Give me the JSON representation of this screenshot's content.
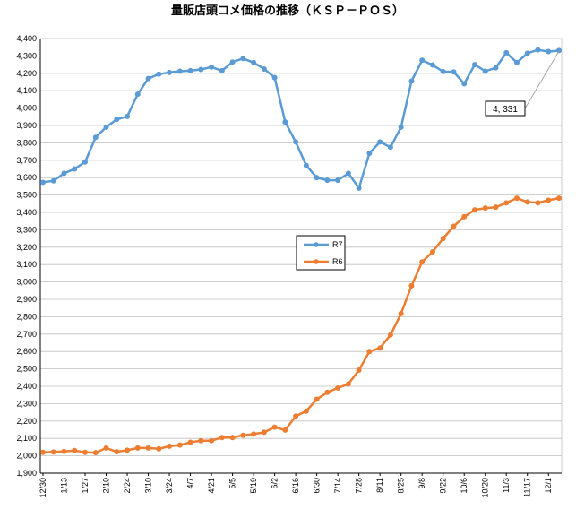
{
  "chart_data": {
    "type": "line",
    "title": "量販店頭コメ価格の推移（ＫＳＰ－ＰＯＳ）",
    "xlabel": "",
    "ylabel": "",
    "ylim": [
      1900,
      4400
    ],
    "yticks": [
      1900,
      2000,
      2100,
      2200,
      2300,
      2400,
      2500,
      2600,
      2700,
      2800,
      2900,
      3000,
      3100,
      3200,
      3300,
      3400,
      3500,
      3600,
      3700,
      3800,
      3900,
      4000,
      4100,
      4200,
      4300,
      4400
    ],
    "ytick_labels": [
      "1,900",
      "2,000",
      "2,100",
      "2,200",
      "2,300",
      "2,400",
      "2,500",
      "2,600",
      "2,700",
      "2,800",
      "2,900",
      "3,000",
      "3,100",
      "3,200",
      "3,300",
      "3,400",
      "3,500",
      "3,600",
      "3,700",
      "3,800",
      "3,900",
      "4,000",
      "4,100",
      "4,200",
      "4,300",
      "4,400"
    ],
    "xtick_labels": [
      "12/30",
      "1/13",
      "1/27",
      "2/10",
      "2/24",
      "3/10",
      "3/24",
      "4/7",
      "4/21",
      "5/5",
      "5/19",
      "6/2",
      "6/16",
      "6/30",
      "7/14",
      "7/28",
      "8/11",
      "8/25",
      "9/8",
      "9/22",
      "10/6",
      "10/20",
      "11/3",
      "11/17",
      "12/1"
    ],
    "grid": true,
    "legend": "center-right",
    "series": [
      {
        "name": "R7",
        "color": "#5b9bd5",
        "values": [
          3573,
          3582,
          3625,
          3650,
          3690,
          3832,
          3890,
          3935,
          3952,
          4080,
          4170,
          4195,
          4205,
          4212,
          4215,
          4222,
          4236,
          4215,
          4265,
          4285,
          4262,
          4225,
          4175,
          3920,
          3805,
          3670,
          3600,
          3585,
          3585,
          3625,
          3540,
          3740,
          3805,
          3775,
          3890,
          4155,
          4275,
          4248,
          4210,
          4208,
          4140,
          4250,
          4212,
          4232,
          4318,
          4262,
          4315,
          4335,
          4325,
          4331
        ]
      },
      {
        "name": "R6",
        "color": "#ed7d31",
        "values": [
          2020,
          2022,
          2025,
          2030,
          2020,
          2018,
          2045,
          2023,
          2032,
          2045,
          2045,
          2040,
          2055,
          2062,
          2078,
          2087,
          2087,
          2105,
          2105,
          2118,
          2125,
          2135,
          2165,
          2148,
          2228,
          2257,
          2325,
          2365,
          2390,
          2413,
          2493,
          2600,
          2620,
          2695,
          2818,
          2978,
          3115,
          3173,
          3250,
          3320,
          3375,
          3415,
          3425,
          3430,
          3455,
          3482,
          3460,
          3455,
          3470,
          3482
        ]
      }
    ],
    "annotations": [
      {
        "text": "4, 331"
      }
    ]
  }
}
